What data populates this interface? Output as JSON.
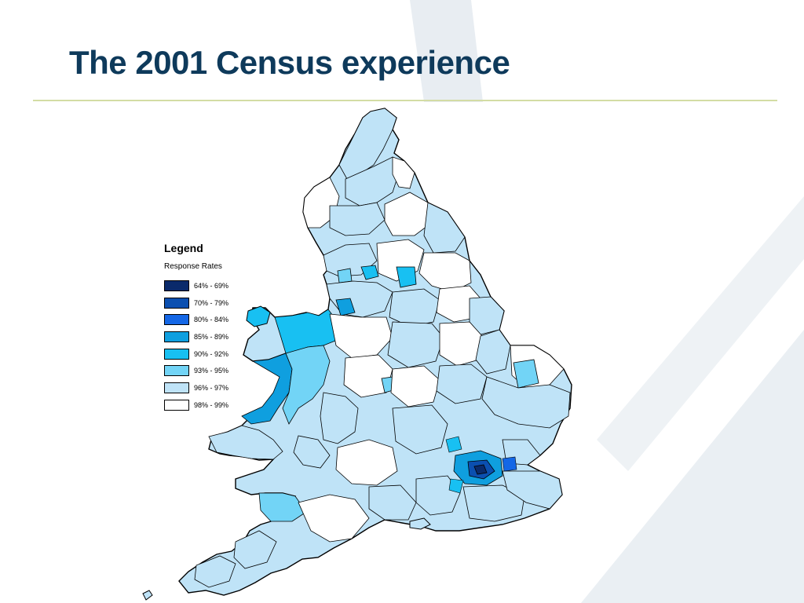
{
  "slide": {
    "title": "The 2001 Census experience"
  },
  "legend": {
    "title": "Legend",
    "subtitle": "Response Rates",
    "items": [
      {
        "label": "64% - 69%",
        "color": "#0a2a6b"
      },
      {
        "label": "70% - 79%",
        "color": "#0b4fb0"
      },
      {
        "label": "80% - 84%",
        "color": "#1467e6"
      },
      {
        "label": "85% - 89%",
        "color": "#0f9fdf"
      },
      {
        "label": "90% - 92%",
        "color": "#18c0f2"
      },
      {
        "label": "93% - 95%",
        "color": "#72d4f6"
      },
      {
        "label": "96% - 97%",
        "color": "#bfe3f7"
      },
      {
        "label": "98% - 99%",
        "color": "#ffffff"
      }
    ]
  },
  "colors": {
    "title": "#0e3a5b",
    "rule": "#d3dca4",
    "background_decoration": "#e9eef3"
  }
}
